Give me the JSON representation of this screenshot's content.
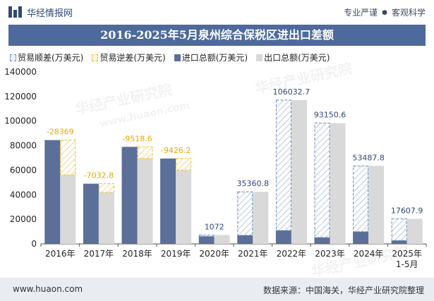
{
  "header": {
    "brand": "华经情报网",
    "slogan_left": "专业严谨",
    "slogan_right": "客观科学"
  },
  "title": "2016-2025年5月泉州综合保税区进出口差额",
  "legend": {
    "surplus": "贸易顺差(万美元)",
    "deficit": "贸易逆差(万美元)",
    "import": "进口总额(万美元)",
    "export": "出口总额(万美元)"
  },
  "colors": {
    "title_bg": "#4e6a9c",
    "import": "#5b6f98",
    "export": "#d9d9d9",
    "surplus_border": "#6f8fb9",
    "deficit_border": "#f0c030",
    "surplus_label": "#2e4a7a",
    "deficit_label": "#e8a800"
  },
  "watermark": "华经产业研究院",
  "watermark_url": "www.huaon.com",
  "footer": {
    "url": "www.huaon.com",
    "source": "数据来源：中国海关，华经产业研究院整理"
  },
  "chart_data": {
    "type": "bar",
    "categories": [
      "2016年",
      "2017年",
      "2018年",
      "2019年",
      "2020年",
      "2021年",
      "2022年",
      "2023年",
      "2024年",
      "2025年\n1-5月"
    ],
    "series": [
      {
        "name": "进口总额(万美元)",
        "values": [
          84500,
          49000,
          79000,
          69500,
          6200,
          7000,
          11000,
          5200,
          10000,
          2800
        ]
      },
      {
        "name": "出口总额(万美元)",
        "values": [
          56131,
          41967,
          69481,
          60074,
          7272,
          42361,
          117033,
          98351,
          63488,
          20408
        ]
      }
    ],
    "balance": [
      {
        "type": "deficit",
        "label": "-28369"
      },
      {
        "type": "deficit",
        "label": "-7032.8"
      },
      {
        "type": "deficit",
        "label": "-9518.6"
      },
      {
        "type": "deficit",
        "label": "-9426.2"
      },
      {
        "type": "surplus",
        "label": "1072"
      },
      {
        "type": "surplus",
        "label": "35360.8"
      },
      {
        "type": "surplus",
        "label": "106032.7"
      },
      {
        "type": "surplus",
        "label": "93150.6"
      },
      {
        "type": "surplus",
        "label": "53487.8"
      },
      {
        "type": "surplus",
        "label": "17607.9"
      }
    ],
    "yticks": [
      "0",
      "20000",
      "40000",
      "60000",
      "80000",
      "100000",
      "120000",
      "140000"
    ],
    "ylim": [
      0,
      140000
    ]
  }
}
